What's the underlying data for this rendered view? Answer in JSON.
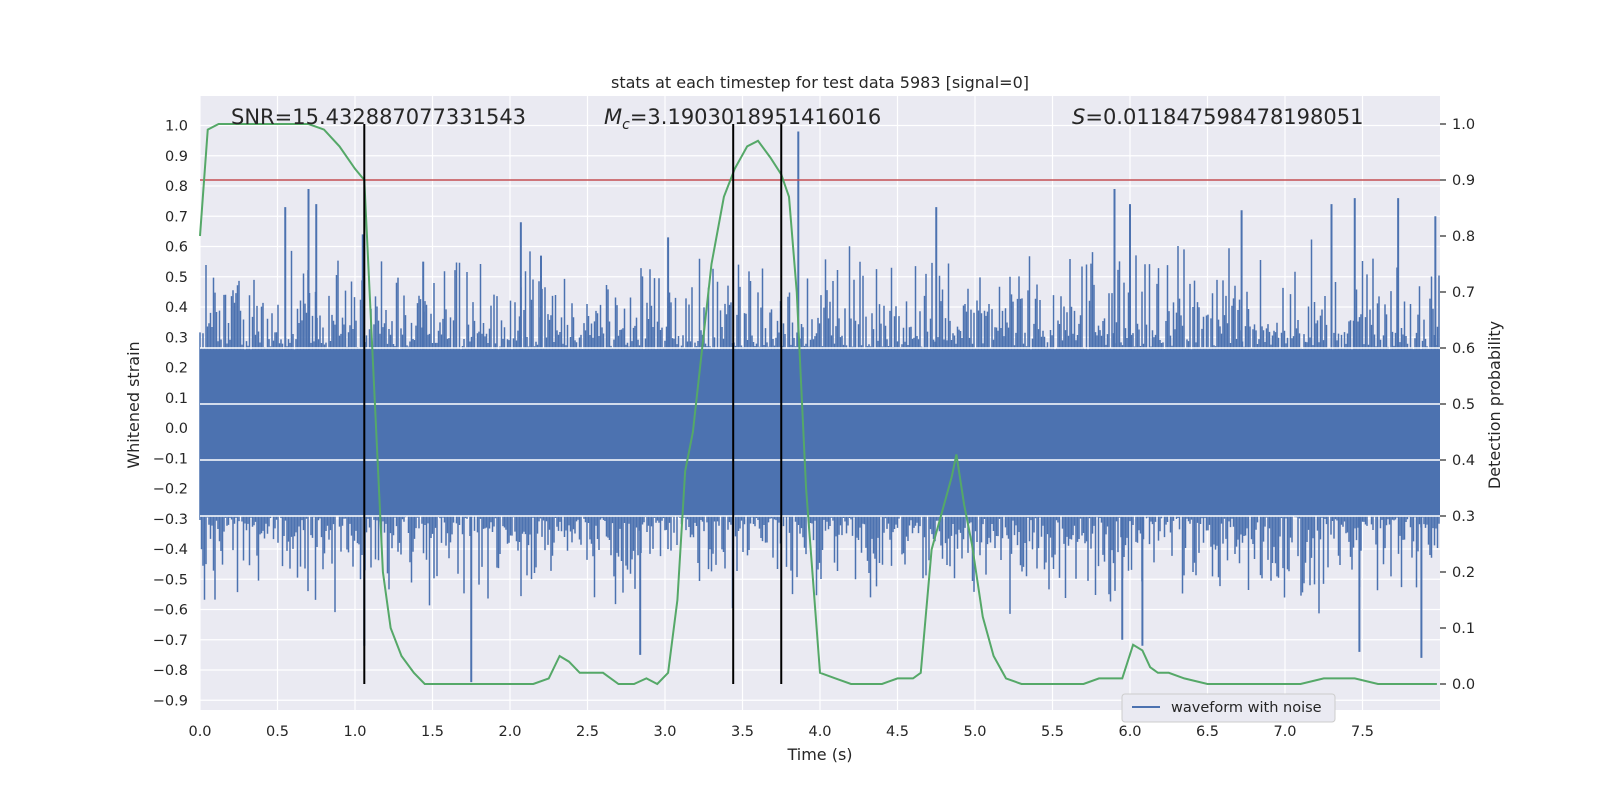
{
  "chart_data": {
    "type": "line",
    "title": "stats at each timestep for test data 5983 [signal=0]",
    "xlabel": "Time (s)",
    "ylabel_left": "Whitened strain",
    "ylabel_right": "Detection probability",
    "xlim": [
      0.0,
      8.0
    ],
    "ylim_left": [
      -0.95,
      1.1
    ],
    "ylim_right": [
      -0.045,
      1.045
    ],
    "x_ticks": [
      "0.0",
      "0.5",
      "1.0",
      "1.5",
      "2.0",
      "2.5",
      "3.0",
      "3.5",
      "4.0",
      "4.5",
      "5.0",
      "5.5",
      "6.0",
      "6.5",
      "7.0",
      "7.5"
    ],
    "y_ticks_left": [
      "1.0",
      "0.9",
      "0.8",
      "0.7",
      "0.6",
      "0.5",
      "0.4",
      "0.3",
      "0.2",
      "0.1",
      "0.0",
      "-0.1",
      "-0.2",
      "-0.3",
      "-0.4",
      "-0.5",
      "-0.6",
      "-0.7",
      "-0.8",
      "-0.9"
    ],
    "y_ticks_right": [
      "1.0",
      "0.9",
      "0.8",
      "0.7",
      "0.6",
      "0.5",
      "0.4",
      "0.3",
      "0.2",
      "0.1",
      "0.0"
    ],
    "grid": true,
    "legend_position": "lower-right",
    "annotations": {
      "snr": "SNR=15.432887077331543",
      "mc_symbol": "M",
      "mc_sub": "c",
      "mc_value": "=3.1903018951416016",
      "s_symbol": "S",
      "s_value": "=0.011847598478198051"
    },
    "threshold_probability": 0.9,
    "vertical_lines_time": [
      1.06,
      3.44,
      3.75
    ],
    "series": [
      {
        "name": "waveform with noise",
        "axis": "left",
        "color": "#4c72b0",
        "description_dense": true,
        "core_band": [
          -0.29,
          0.26
        ],
        "spikes": [
          {
            "x": 0.55,
            "y": 0.73
          },
          {
            "x": 0.7,
            "y": 0.79
          },
          {
            "x": 0.75,
            "y": 0.74
          },
          {
            "x": 1.05,
            "y": 0.64
          },
          {
            "x": 1.44,
            "y": 0.55
          },
          {
            "x": 1.75,
            "y": -0.84
          },
          {
            "x": 2.07,
            "y": 0.68
          },
          {
            "x": 2.2,
            "y": 0.57
          },
          {
            "x": 2.84,
            "y": -0.75
          },
          {
            "x": 3.02,
            "y": 0.63
          },
          {
            "x": 3.86,
            "y": 0.98
          },
          {
            "x": 4.75,
            "y": 0.73
          },
          {
            "x": 5.9,
            "y": 0.79
          },
          {
            "x": 6.0,
            "y": 0.74
          },
          {
            "x": 6.72,
            "y": 0.72
          },
          {
            "x": 7.3,
            "y": 0.74
          },
          {
            "x": 7.73,
            "y": 0.76
          },
          {
            "x": 7.45,
            "y": 0.76
          },
          {
            "x": 7.97,
            "y": 0.7
          },
          {
            "x": 7.48,
            "y": -0.74
          },
          {
            "x": 7.88,
            "y": -0.76
          },
          {
            "x": 6.08,
            "y": -0.72
          },
          {
            "x": 1.06,
            "y": -0.72
          },
          {
            "x": 5.95,
            "y": -0.7
          }
        ]
      },
      {
        "name": "",
        "axis": "right",
        "color": "#55a868",
        "x": [
          0.0,
          0.05,
          0.12,
          0.2,
          0.4,
          0.6,
          0.7,
          0.8,
          0.9,
          1.0,
          1.06,
          1.12,
          1.18,
          1.23,
          1.3,
          1.38,
          1.45,
          1.55,
          1.65,
          1.75,
          1.85,
          1.95,
          2.05,
          2.15,
          2.25,
          2.32,
          2.38,
          2.45,
          2.52,
          2.6,
          2.7,
          2.8,
          2.88,
          2.95,
          3.02,
          3.08,
          3.13,
          3.18,
          3.24,
          3.3,
          3.38,
          3.45,
          3.53,
          3.6,
          3.68,
          3.75,
          3.8,
          3.85,
          3.91,
          4.0,
          4.1,
          4.2,
          4.3,
          4.4,
          4.5,
          4.6,
          4.65,
          4.72,
          4.78,
          4.85,
          4.88,
          4.93,
          4.98,
          5.05,
          5.12,
          5.2,
          5.3,
          5.5,
          5.7,
          5.8,
          5.9,
          5.95,
          6.02,
          6.08,
          6.13,
          6.18,
          6.25,
          6.35,
          6.5,
          6.7,
          6.9,
          7.1,
          7.25,
          7.35,
          7.45,
          7.6,
          7.8,
          7.98
        ],
        "y": [
          0.8,
          0.99,
          1.0,
          1.0,
          1.0,
          1.0,
          1.0,
          0.99,
          0.96,
          0.92,
          0.9,
          0.55,
          0.2,
          0.1,
          0.05,
          0.02,
          0.0,
          0.0,
          0.0,
          0.0,
          0.0,
          0.0,
          0.0,
          0.0,
          0.01,
          0.05,
          0.04,
          0.02,
          0.02,
          0.02,
          0.0,
          0.0,
          0.01,
          0.0,
          0.02,
          0.15,
          0.38,
          0.45,
          0.6,
          0.75,
          0.87,
          0.92,
          0.96,
          0.97,
          0.94,
          0.91,
          0.87,
          0.7,
          0.35,
          0.02,
          0.01,
          0.0,
          0.0,
          0.0,
          0.01,
          0.01,
          0.02,
          0.24,
          0.3,
          0.37,
          0.41,
          0.32,
          0.25,
          0.12,
          0.05,
          0.01,
          0.0,
          0.0,
          0.0,
          0.01,
          0.01,
          0.01,
          0.07,
          0.06,
          0.03,
          0.02,
          0.02,
          0.01,
          0.0,
          0.0,
          0.0,
          0.0,
          0.01,
          0.01,
          0.01,
          0.0,
          0.0,
          0.0
        ]
      }
    ]
  }
}
